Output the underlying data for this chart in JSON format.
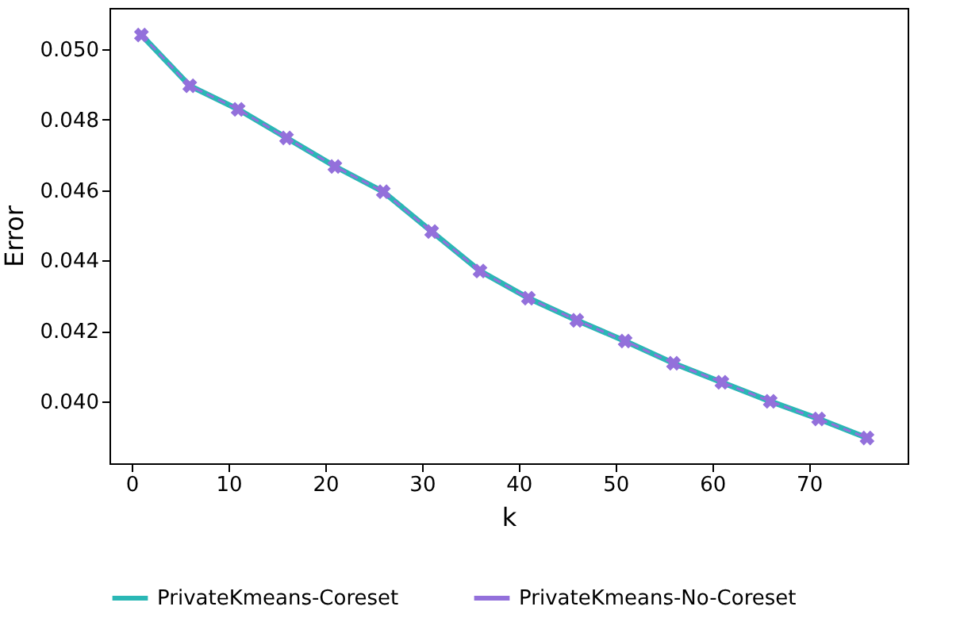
{
  "chart_data": {
    "type": "line",
    "xlabel": "k",
    "ylabel": "Error",
    "x": [
      1,
      6,
      11,
      16,
      21,
      26,
      31,
      36,
      41,
      46,
      51,
      56,
      61,
      66,
      71,
      76
    ],
    "series": [
      {
        "name": "PrivateKmeans-Coreset",
        "color": "#2ab7b5",
        "line_style": "solid",
        "marker": "none",
        "values": [
          0.0504,
          0.04896,
          0.04829,
          0.04748,
          0.04667,
          0.04595,
          0.04482,
          0.0437,
          0.04293,
          0.0423,
          0.04171,
          0.04108,
          0.04054,
          0.04,
          0.0395,
          0.03896
        ]
      },
      {
        "name": "PrivateKmeans-No-Coreset",
        "color": "#9370db",
        "line_style": "dashed",
        "marker": "cross",
        "values": [
          0.0504,
          0.04896,
          0.04829,
          0.04748,
          0.04667,
          0.04595,
          0.04482,
          0.0437,
          0.04293,
          0.0423,
          0.04171,
          0.04108,
          0.04054,
          0.04,
          0.0395,
          0.03896
        ]
      }
    ],
    "xlim": [
      -2.3,
      80.2
    ],
    "ylim": [
      0.03824,
      0.05117
    ],
    "xticks": [
      0,
      10,
      20,
      30,
      40,
      50,
      60,
      70
    ],
    "yticks": [
      {
        "value": 0.04,
        "label": "0.040"
      },
      {
        "value": 0.042,
        "label": "0.042"
      },
      {
        "value": 0.044,
        "label": "0.044"
      },
      {
        "value": 0.046,
        "label": "0.046"
      },
      {
        "value": 0.048,
        "label": "0.048"
      },
      {
        "value": 0.05,
        "label": "0.050"
      }
    ],
    "grid": false,
    "legend": "bottom"
  }
}
